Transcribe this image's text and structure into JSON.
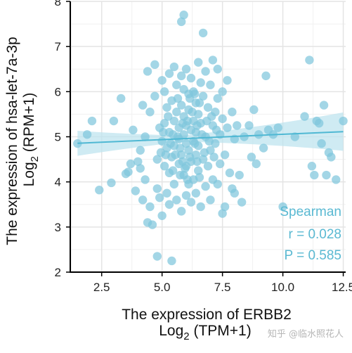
{
  "chart_data": {
    "type": "scatter",
    "xlabel": "The expression of ERBB2",
    "xlabel_unit": "Log",
    "xlabel_unit_sub": "2",
    "xlabel_unit_rest": " (TPM+1)",
    "ylabel": "The expression of hsa-let-7a-3p",
    "ylabel_unit": "Log",
    "ylabel_unit_sub": "2",
    "ylabel_unit_rest": " (RPM+1)",
    "xlim": [
      1.2,
      12.6
    ],
    "ylim": [
      2,
      8
    ],
    "xticks": [
      "2.5",
      "5.0",
      "7.5",
      "10.0",
      "12.5"
    ],
    "xtick_values": [
      2.5,
      5.0,
      7.5,
      10.0,
      12.5
    ],
    "yticks": [
      "2",
      "3",
      "4",
      "5",
      "6",
      "7",
      "8"
    ],
    "ytick_values": [
      2,
      3,
      4,
      5,
      6,
      7,
      8
    ],
    "grid": true,
    "point_color": "#7fc6dc",
    "line_color": "#4fb8d3",
    "band_color": "#bfe4ef",
    "regression": {
      "intercept": 4.82,
      "slope": 0.0235
    },
    "band_halfwidth": {
      "center": 5.9,
      "min": 0.07,
      "k": 0.034
    },
    "annotation": [
      "Spearman",
      "r = 0.028",
      "P = 0.585"
    ],
    "annotation_color": "#5ab9d2",
    "points": [
      [
        1.5,
        4.85
      ],
      [
        1.9,
        5.05
      ],
      [
        2.1,
        5.35
      ],
      [
        2.4,
        3.82
      ],
      [
        2.9,
        3.98
      ],
      [
        3.0,
        5.35
      ],
      [
        3.3,
        5.85
      ],
      [
        3.5,
        4.18
      ],
      [
        3.6,
        4.22
      ],
      [
        3.7,
        4.4
      ],
      [
        3.8,
        5.15
      ],
      [
        3.9,
        3.8
      ],
      [
        4.0,
        4.45
      ],
      [
        4.1,
        4.3
      ],
      [
        4.1,
        4.7
      ],
      [
        4.2,
        5.7
      ],
      [
        4.2,
        3.6
      ],
      [
        4.3,
        4.05
      ],
      [
        4.3,
        5.0
      ],
      [
        4.4,
        6.45
      ],
      [
        4.4,
        3.1
      ],
      [
        4.5,
        3.45
      ],
      [
        4.5,
        5.55
      ],
      [
        4.6,
        3.05
      ],
      [
        4.7,
        6.6
      ],
      [
        4.7,
        5.9
      ],
      [
        4.8,
        2.35
      ],
      [
        4.8,
        3.85
      ],
      [
        4.8,
        4.5
      ],
      [
        4.9,
        5.2
      ],
      [
        4.9,
        3.65
      ],
      [
        5.0,
        6.25
      ],
      [
        5.0,
        4.9
      ],
      [
        5.0,
        3.25
      ],
      [
        5.1,
        5.3
      ],
      [
        5.1,
        4.35
      ],
      [
        5.1,
        6.0
      ],
      [
        5.2,
        3.75
      ],
      [
        5.2,
        5.65
      ],
      [
        5.2,
        4.75
      ],
      [
        5.3,
        6.4
      ],
      [
        5.3,
        4.2
      ],
      [
        5.3,
        3.5
      ],
      [
        5.3,
        5.1
      ],
      [
        5.4,
        2.25
      ],
      [
        5.4,
        5.8
      ],
      [
        5.4,
        4.55
      ],
      [
        5.5,
        6.55
      ],
      [
        5.5,
        3.95
      ],
      [
        5.5,
        5.35
      ],
      [
        5.5,
        4.8
      ],
      [
        5.6,
        6.15
      ],
      [
        5.6,
        3.6
      ],
      [
        5.6,
        5.55
      ],
      [
        5.7,
        4.95
      ],
      [
        5.7,
        4.4
      ],
      [
        5.7,
        5.2
      ],
      [
        5.8,
        7.55
      ],
      [
        5.8,
        6.35
      ],
      [
        5.8,
        3.35
      ],
      [
        5.8,
        5.7
      ],
      [
        5.8,
        4.6
      ],
      [
        5.9,
        7.7
      ],
      [
        5.9,
        5.05
      ],
      [
        5.9,
        4.15
      ],
      [
        5.9,
        5.45
      ],
      [
        5.9,
        6.05
      ],
      [
        6.0,
        4.85
      ],
      [
        6.0,
        3.7
      ],
      [
        6.0,
        5.25
      ],
      [
        6.0,
        6.5
      ],
      [
        6.0,
        4.35
      ],
      [
        6.1,
        5.6
      ],
      [
        6.1,
        4.7
      ],
      [
        6.1,
        3.95
      ],
      [
        6.1,
        5.95
      ],
      [
        6.2,
        4.45
      ],
      [
        6.2,
        5.15
      ],
      [
        6.2,
        6.3
      ],
      [
        6.2,
        3.55
      ],
      [
        6.3,
        5.35
      ],
      [
        6.3,
        4.9
      ],
      [
        6.3,
        4.05
      ],
      [
        6.3,
        6.0
      ],
      [
        6.4,
        5.75
      ],
      [
        6.4,
        4.6
      ],
      [
        6.4,
        3.75
      ],
      [
        6.4,
        5.1
      ],
      [
        6.5,
        6.65
      ],
      [
        6.5,
        4.25
      ],
      [
        6.5,
        5.5
      ],
      [
        6.5,
        4.8
      ],
      [
        6.6,
        6.2
      ],
      [
        6.6,
        3.45
      ],
      [
        6.6,
        5.3
      ],
      [
        6.7,
        7.3
      ],
      [
        6.7,
        4.5
      ],
      [
        6.7,
        5.9
      ],
      [
        6.8,
        5.0
      ],
      [
        6.8,
        3.9
      ],
      [
        6.8,
        6.45
      ],
      [
        6.9,
        4.35
      ],
      [
        6.9,
        5.65
      ],
      [
        7.0,
        6.15
      ],
      [
        7.0,
        4.7
      ],
      [
        7.0,
        3.6
      ],
      [
        7.1,
        5.25
      ],
      [
        7.1,
        6.7
      ],
      [
        7.1,
        4.05
      ],
      [
        7.2,
        5.55
      ],
      [
        7.2,
        4.85
      ],
      [
        7.3,
        6.5
      ],
      [
        7.3,
        3.95
      ],
      [
        7.3,
        5.85
      ],
      [
        7.4,
        5.05
      ],
      [
        7.4,
        4.4
      ],
      [
        7.5,
        3.3
      ],
      [
        7.5,
        5.4
      ],
      [
        7.5,
        6.0
      ],
      [
        7.6,
        4.6
      ],
      [
        7.6,
        3.45
      ],
      [
        7.7,
        5.2
      ],
      [
        7.7,
        6.25
      ],
      [
        7.8,
        4.2
      ],
      [
        7.9,
        5.55
      ],
      [
        7.9,
        3.85
      ],
      [
        8.0,
        4.95
      ],
      [
        8.0,
        3.75
      ],
      [
        8.1,
        5.25
      ],
      [
        8.2,
        4.15
      ],
      [
        8.3,
        3.55
      ],
      [
        8.4,
        5.0
      ],
      [
        8.6,
        5.25
      ],
      [
        8.7,
        4.55
      ],
      [
        8.8,
        5.6
      ],
      [
        8.9,
        4.4
      ],
      [
        9.0,
        5.05
      ],
      [
        9.2,
        4.75
      ],
      [
        9.3,
        6.35
      ],
      [
        9.4,
        5.15
      ],
      [
        9.6,
        5.05
      ],
      [
        9.8,
        5.2
      ],
      [
        10.0,
        3.45
      ],
      [
        10.5,
        5.0
      ],
      [
        10.9,
        5.45
      ],
      [
        11.1,
        6.7
      ],
      [
        11.2,
        4.35
      ],
      [
        11.3,
        4.15
      ],
      [
        11.4,
        5.35
      ],
      [
        11.5,
        5.3
      ],
      [
        11.6,
        4.85
      ],
      [
        11.7,
        5.7
      ],
      [
        11.8,
        4.15
      ],
      [
        11.9,
        4.65
      ],
      [
        12.0,
        4.55
      ],
      [
        12.2,
        4.05
      ],
      [
        12.5,
        5.35
      ],
      [
        5.65,
        5.0
      ],
      [
        5.75,
        4.75
      ],
      [
        5.95,
        4.3
      ],
      [
        6.05,
        5.35
      ],
      [
        6.15,
        4.55
      ],
      [
        6.25,
        5.55
      ],
      [
        6.35,
        4.85
      ],
      [
        6.45,
        5.25
      ],
      [
        6.55,
        4.1
      ],
      [
        6.65,
        5.05
      ],
      [
        6.75,
        4.65
      ],
      [
        5.55,
        4.6
      ],
      [
        5.45,
        5.05
      ],
      [
        5.35,
        4.85
      ],
      [
        5.25,
        5.45
      ],
      [
        5.15,
        4.6
      ],
      [
        5.05,
        5.1
      ],
      [
        6.85,
        5.35
      ],
      [
        6.95,
        4.9
      ],
      [
        7.05,
        5.45
      ],
      [
        7.15,
        4.55
      ],
      [
        7.25,
        5.15
      ],
      [
        5.85,
        5.3
      ],
      [
        5.85,
        4.45
      ],
      [
        6.05,
        4.05
      ],
      [
        6.15,
        5.85
      ],
      [
        6.35,
        5.95
      ],
      [
        5.65,
        5.85
      ],
      [
        5.75,
        4.15
      ],
      [
        6.45,
        4.45
      ],
      [
        6.55,
        5.75
      ],
      [
        4.95,
        4.65
      ],
      [
        5.45,
        4.25
      ]
    ]
  },
  "watermark": "知乎 @临水照花人"
}
